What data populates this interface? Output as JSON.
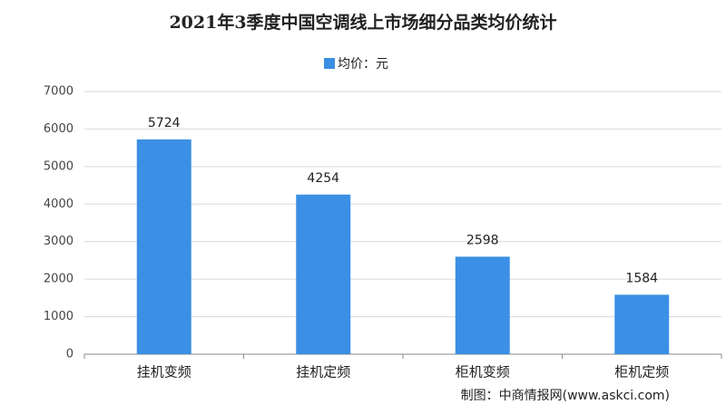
{
  "chart_data": {
    "type": "bar",
    "title": "2021年3季度中国空调线上市场细分品类均价统计",
    "categories": [
      "挂机变频",
      "挂机定频",
      "柜机变频",
      "柜机定频"
    ],
    "series": [
      {
        "name": "均价：元",
        "color": "#3b8fe4",
        "values": [
          5724,
          4254,
          2598,
          1584
        ]
      }
    ],
    "ylim": [
      0,
      7000
    ],
    "yticks": [
      0,
      1000,
      2000,
      3000,
      4000,
      5000,
      6000,
      7000
    ],
    "grid": true,
    "legend": "top",
    "source": "制图：中商情报网(www.askci.com)"
  }
}
